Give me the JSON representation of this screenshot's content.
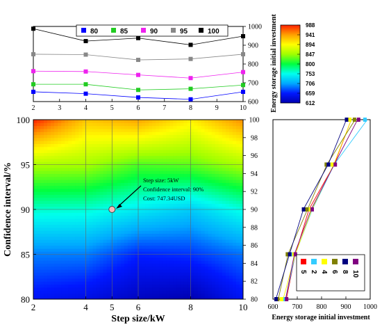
{
  "chart_data": [
    {
      "id": "top_lines",
      "type": "line",
      "x": [
        2,
        4,
        6,
        8,
        10
      ],
      "xlim": [
        2,
        10
      ],
      "xticks": [
        2,
        3,
        4,
        5,
        6,
        7,
        8,
        9,
        10
      ],
      "ylim": [
        600,
        1000
      ],
      "yticks": [
        600,
        700,
        800,
        900,
        1000
      ],
      "ylabel": "Energy storage  initial investment",
      "legend_position": "top",
      "series": [
        {
          "name": "80",
          "color": "#0000ff",
          "marker": "square",
          "values": [
            652,
            642,
            622,
            612,
            652
          ]
        },
        {
          "name": "85",
          "color": "#22cc22",
          "marker": "square",
          "values": [
            692,
            692,
            662,
            668,
            688
          ]
        },
        {
          "name": "90",
          "color": "#ee22ee",
          "marker": "square",
          "values": [
            762,
            760,
            742,
            725,
            757
          ]
        },
        {
          "name": "95",
          "color": "#888888",
          "marker": "square",
          "values": [
            852,
            850,
            822,
            827,
            852
          ]
        },
        {
          "name": "100",
          "color": "#000000",
          "marker": "square",
          "values": [
            988,
            922,
            938,
            902,
            948
          ]
        }
      ]
    },
    {
      "id": "heatmap",
      "type": "heatmap",
      "xlabel": "Step size/kW",
      "ylabel": "Confidence interval/%",
      "xlim": [
        2,
        10
      ],
      "ylim": [
        80,
        100
      ],
      "xticks": [
        2,
        4,
        5,
        6,
        8,
        10
      ],
      "yticks": [
        80,
        85,
        90,
        95,
        100
      ],
      "right_yticks": [
        80,
        82,
        84,
        86,
        88,
        90,
        92,
        94,
        96,
        98,
        100
      ],
      "grid": true,
      "colorbar": {
        "min": 612,
        "max": 988,
        "ticks": [
          988,
          941,
          894,
          847,
          800,
          753,
          706,
          659,
          612
        ],
        "colors": [
          "#0000b0",
          "#0018ff",
          "#00a8ff",
          "#00ffee",
          "#00ff40",
          "#a0ff00",
          "#ffff00",
          "#ffa000",
          "#ff2000"
        ]
      },
      "annotation": {
        "x": 5,
        "y": 90,
        "lines": [
          "Step size:  5kW",
          "Confidence interval:  90%",
          "Cost:  747.34USD"
        ]
      }
    },
    {
      "id": "right_lines",
      "type": "line",
      "xlabel": "Energy storage  initial investment",
      "xlim": [
        600,
        1000
      ],
      "xticks": [
        600,
        700,
        800,
        900,
        1000
      ],
      "ylim": [
        80,
        100
      ],
      "y": [
        80,
        85,
        90,
        95,
        100
      ],
      "legend_position": "bottom-right",
      "series": [
        {
          "name": "5",
          "color": "#ff0000",
          "values": [
            655,
            692,
            748,
            852,
            922
          ]
        },
        {
          "name": "2",
          "color": "#33ccff",
          "values": [
            652,
            692,
            762,
            852,
            988
          ]
        },
        {
          "name": "4",
          "color": "#ffff00",
          "values": [
            642,
            692,
            760,
            850,
            922
          ]
        },
        {
          "name": "6",
          "color": "#808000",
          "values": [
            622,
            662,
            742,
            822,
            938
          ]
        },
        {
          "name": "8",
          "color": "#000080",
          "values": [
            612,
            668,
            725,
            827,
            902
          ]
        },
        {
          "name": "10",
          "color": "#800080",
          "values": [
            652,
            688,
            757,
            852,
            948
          ]
        }
      ]
    }
  ]
}
